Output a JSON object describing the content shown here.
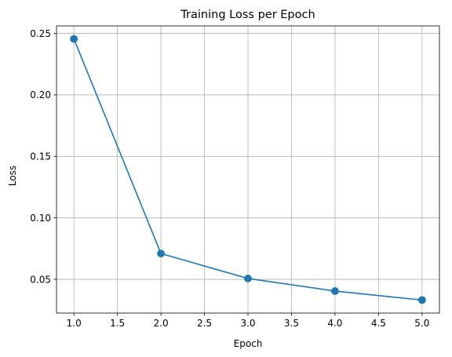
{
  "chart_data": {
    "type": "line",
    "title": "Training Loss per Epoch",
    "xlabel": "Epoch",
    "ylabel": "Loss",
    "x": [
      1,
      2,
      3,
      4,
      5
    ],
    "series": [
      {
        "values": [
          0.2455,
          0.071,
          0.0507,
          0.0405,
          0.0332
        ],
        "color": "#1f77b4",
        "marker": "circle"
      }
    ],
    "xlim": [
      0.8,
      5.2
    ],
    "ylim": [
      0.0226,
      0.2561
    ],
    "xticks": [
      1.0,
      1.5,
      2.0,
      2.5,
      3.0,
      3.5,
      4.0,
      4.5,
      5.0
    ],
    "xtick_labels": [
      "1.0",
      "1.5",
      "2.0",
      "2.5",
      "3.0",
      "3.5",
      "4.0",
      "4.5",
      "5.0"
    ],
    "yticks": [
      0.05,
      0.1,
      0.15,
      0.2,
      0.25
    ],
    "ytick_labels": [
      "0.05",
      "0.10",
      "0.15",
      "0.20",
      "0.25"
    ],
    "grid": true,
    "legend": "none"
  }
}
